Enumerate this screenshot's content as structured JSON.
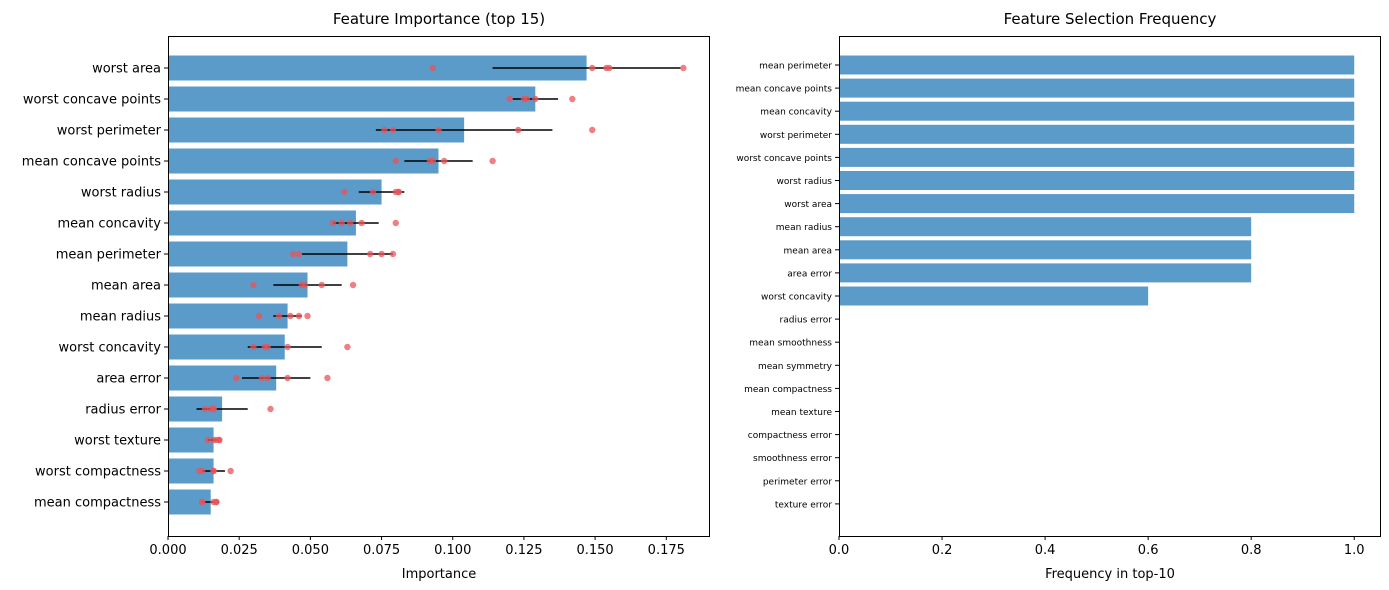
{
  "chart_data": [
    {
      "type": "bar",
      "orientation": "horizontal",
      "title": "Feature Importance (top 15)",
      "xlabel": "Importance",
      "ylabel": "",
      "xlim": [
        0,
        0.19
      ],
      "xticks": [
        0.0,
        0.025,
        0.05,
        0.075,
        0.1,
        0.125,
        0.15,
        0.175
      ],
      "xtick_labels": [
        "0.000",
        "0.025",
        "0.050",
        "0.075",
        "0.100",
        "0.125",
        "0.150",
        "0.175"
      ],
      "grid": false,
      "bar_color": "#5b9bc9",
      "errorbar_color": "#000000",
      "point_color": "#e8545a",
      "categories": [
        "worst area",
        "worst concave points",
        "worst perimeter",
        "mean concave points",
        "worst radius",
        "mean concavity",
        "mean perimeter",
        "mean area",
        "mean radius",
        "worst concavity",
        "area error",
        "radius error",
        "worst texture",
        "worst compactness",
        "mean compactness"
      ],
      "values": [
        0.147,
        0.129,
        0.104,
        0.095,
        0.075,
        0.066,
        0.063,
        0.049,
        0.042,
        0.041,
        0.038,
        0.019,
        0.016,
        0.016,
        0.015
      ],
      "errors": [
        0.033,
        0.008,
        0.031,
        0.012,
        0.008,
        0.008,
        0.016,
        0.012,
        0.005,
        0.013,
        0.012,
        0.009,
        0.002,
        0.004,
        0.003
      ],
      "points": [
        [
          0.093,
          0.149,
          0.154,
          0.155,
          0.181
        ],
        [
          0.12,
          0.125,
          0.126,
          0.129,
          0.142
        ],
        [
          0.076,
          0.079,
          0.095,
          0.123,
          0.149
        ],
        [
          0.08,
          0.092,
          0.093,
          0.097,
          0.114
        ],
        [
          0.062,
          0.072,
          0.08,
          0.081,
          0.081
        ],
        [
          0.058,
          0.061,
          0.064,
          0.068,
          0.08
        ],
        [
          0.044,
          0.046,
          0.071,
          0.075,
          0.079
        ],
        [
          0.03,
          0.047,
          0.048,
          0.054,
          0.065
        ],
        [
          0.032,
          0.039,
          0.043,
          0.046,
          0.049
        ],
        [
          0.03,
          0.034,
          0.035,
          0.042,
          0.063
        ],
        [
          0.024,
          0.033,
          0.035,
          0.042,
          0.056
        ],
        [
          0.013,
          0.015,
          0.016,
          0.016,
          0.036
        ],
        [
          0.014,
          0.016,
          0.017,
          0.018,
          0.018
        ],
        [
          0.011,
          0.012,
          0.016,
          0.016,
          0.022
        ],
        [
          0.012,
          0.012,
          0.016,
          0.017,
          0.017
        ]
      ]
    },
    {
      "type": "bar",
      "orientation": "horizontal",
      "title": "Feature Selection Frequency",
      "xlabel": "Frequency in top-10",
      "ylabel": "",
      "xlim": [
        0,
        1.05
      ],
      "xticks": [
        0.0,
        0.2,
        0.4,
        0.6,
        0.8,
        1.0
      ],
      "xtick_labels": [
        "0.0",
        "0.2",
        "0.4",
        "0.6",
        "0.8",
        "1.0"
      ],
      "grid": false,
      "bar_color": "#5b9bc9",
      "categories": [
        "mean perimeter",
        "mean concave points",
        "mean concavity",
        "worst perimeter",
        "worst concave points",
        "worst radius",
        "worst area",
        "mean radius",
        "mean area",
        "area error",
        "worst concavity",
        "radius error",
        "mean smoothness",
        "mean symmetry",
        "mean compactness",
        "mean texture",
        "compactness error",
        "smoothness error",
        "perimeter error",
        "texture error"
      ],
      "values": [
        1.0,
        1.0,
        1.0,
        1.0,
        1.0,
        1.0,
        1.0,
        0.8,
        0.8,
        0.8,
        0.6,
        0.0,
        0.0,
        0.0,
        0.0,
        0.0,
        0.0,
        0.0,
        0.0,
        0.0
      ]
    }
  ]
}
